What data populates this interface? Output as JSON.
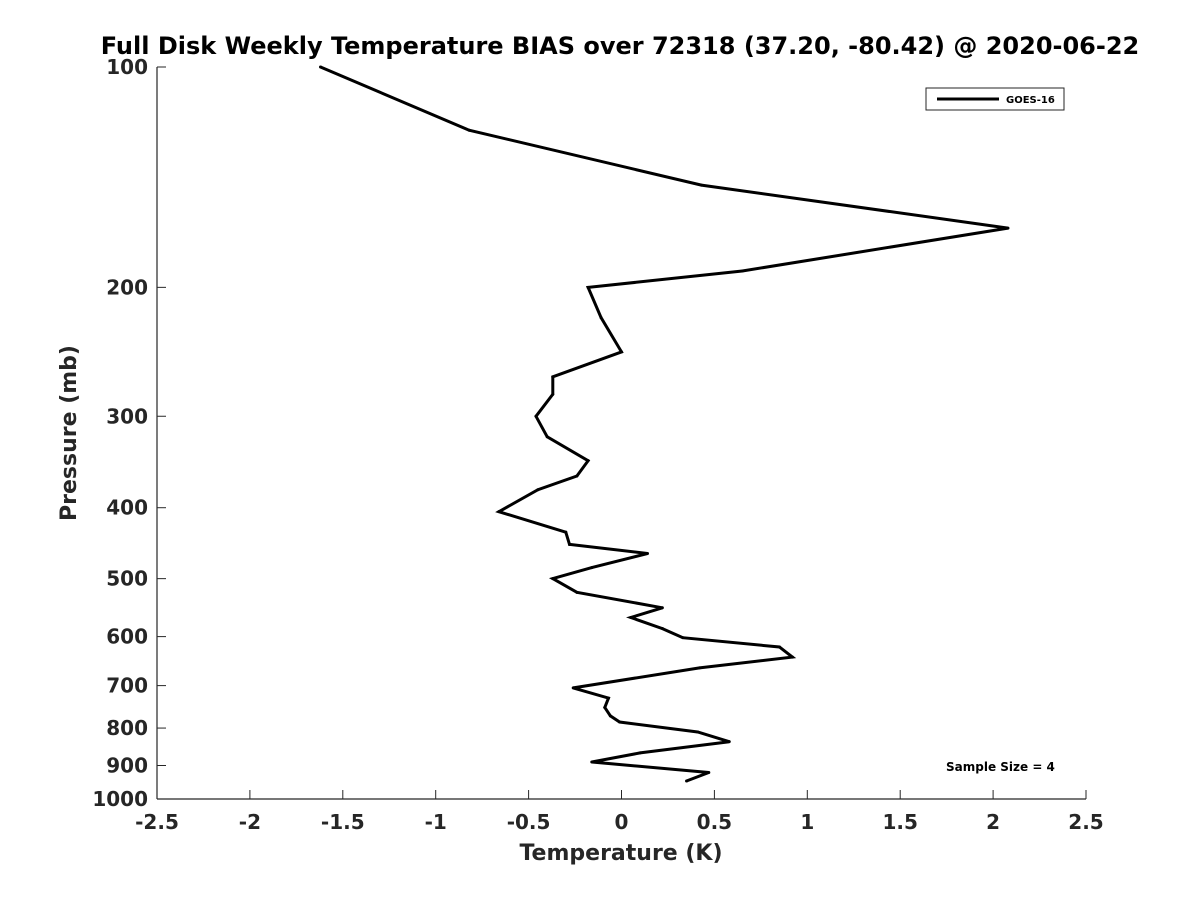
{
  "chart_data": {
    "type": "line",
    "title": "Full Disk Weekly Temperature BIAS over 72318 (37.20, -80.42) @ 2020-06-22",
    "xlabel": "Temperature (K)",
    "ylabel": "Pressure (mb)",
    "xlim": [
      -2.5,
      2.5
    ],
    "ylim": [
      100,
      1000
    ],
    "y_scale": "log",
    "y_reversed": true,
    "x_ticks": [
      "-2.5",
      "-2",
      "-1.5",
      "-1",
      "-0.5",
      "0",
      "0.5",
      "1",
      "1.5",
      "2",
      "2.5"
    ],
    "y_ticks": [
      "100",
      "200",
      "300",
      "400",
      "500",
      "600",
      "700",
      "800",
      "900",
      "1000"
    ],
    "legend": {
      "position": "top-right",
      "entries": [
        "GOES-16"
      ]
    },
    "annotation": "Sample Size = 4",
    "grid": false,
    "series": [
      {
        "name": "GOES-16",
        "color": "#000000",
        "points": [
          {
            "x": -1.62,
            "y": 100
          },
          {
            "x": -0.82,
            "y": 122
          },
          {
            "x": 0.43,
            "y": 145
          },
          {
            "x": 2.08,
            "y": 166
          },
          {
            "x": 0.65,
            "y": 190
          },
          {
            "x": -0.18,
            "y": 200
          },
          {
            "x": -0.11,
            "y": 220
          },
          {
            "x": 0.0,
            "y": 245
          },
          {
            "x": -0.37,
            "y": 265
          },
          {
            "x": -0.37,
            "y": 280
          },
          {
            "x": -0.46,
            "y": 300
          },
          {
            "x": -0.4,
            "y": 320
          },
          {
            "x": -0.18,
            "y": 345
          },
          {
            "x": -0.24,
            "y": 362
          },
          {
            "x": -0.45,
            "y": 378
          },
          {
            "x": -0.66,
            "y": 405
          },
          {
            "x": -0.3,
            "y": 432
          },
          {
            "x": -0.28,
            "y": 449
          },
          {
            "x": 0.14,
            "y": 462
          },
          {
            "x": -0.16,
            "y": 483
          },
          {
            "x": -0.37,
            "y": 500
          },
          {
            "x": -0.24,
            "y": 522
          },
          {
            "x": 0.22,
            "y": 548
          },
          {
            "x": 0.05,
            "y": 565
          },
          {
            "x": 0.22,
            "y": 585
          },
          {
            "x": 0.33,
            "y": 602
          },
          {
            "x": 0.85,
            "y": 620
          },
          {
            "x": 0.92,
            "y": 640
          },
          {
            "x": 0.42,
            "y": 662
          },
          {
            "x": -0.26,
            "y": 705
          },
          {
            "x": -0.07,
            "y": 728
          },
          {
            "x": -0.09,
            "y": 750
          },
          {
            "x": -0.06,
            "y": 770
          },
          {
            "x": -0.01,
            "y": 785
          },
          {
            "x": 0.41,
            "y": 810
          },
          {
            "x": 0.58,
            "y": 835
          },
          {
            "x": 0.1,
            "y": 865
          },
          {
            "x": -0.16,
            "y": 890
          },
          {
            "x": 0.47,
            "y": 920
          },
          {
            "x": 0.35,
            "y": 945
          }
        ]
      }
    ]
  }
}
